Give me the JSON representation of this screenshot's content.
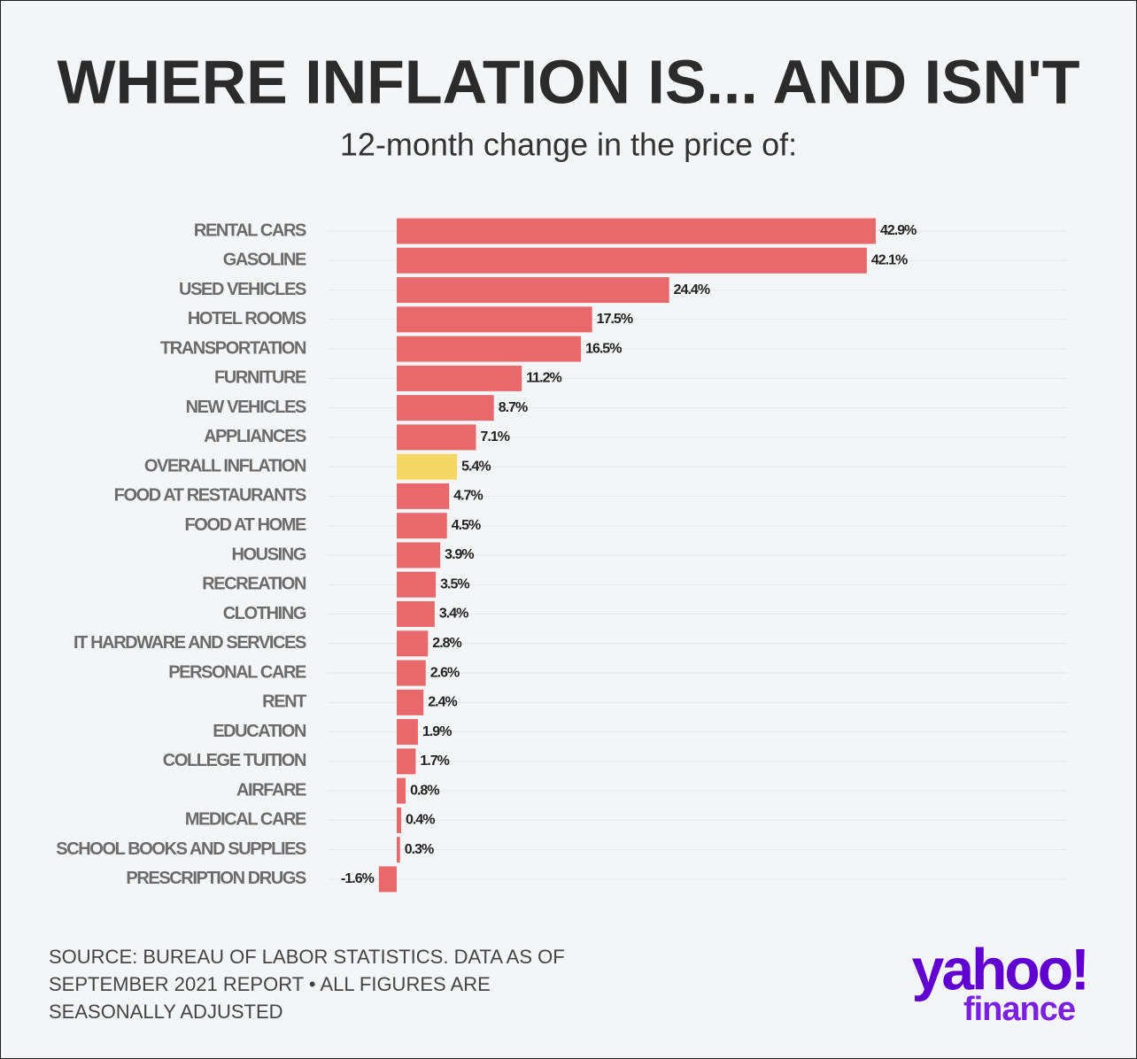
{
  "chart_data": {
    "type": "bar",
    "orientation": "horizontal",
    "title": "WHERE INFLATION IS... AND ISN'T",
    "subtitle": "12-month change in the price of:",
    "categories": [
      "RENTAL CARS",
      "GASOLINE",
      "USED VEHICLES",
      "HOTEL ROOMS",
      "TRANSPORTATION",
      "FURNITURE",
      "NEW VEHICLES",
      "APPLIANCES",
      "OVERALL INFLATION",
      "FOOD AT RESTAURANTS",
      "FOOD AT HOME",
      "HOUSING",
      "RECREATION",
      "CLOTHING",
      "IT HARDWARE AND SERVICES",
      "PERSONAL CARE",
      "RENT",
      "EDUCATION",
      "COLLEGE TUITION",
      "AIRFARE",
      "MEDICAL CARE",
      "SCHOOL BOOKS AND SUPPLIES",
      "PRESCRIPTION DRUGS"
    ],
    "values": [
      42.9,
      42.1,
      24.4,
      17.5,
      16.5,
      11.2,
      8.7,
      7.1,
      5.4,
      4.7,
      4.5,
      3.9,
      3.5,
      3.4,
      2.8,
      2.6,
      2.4,
      1.9,
      1.7,
      0.8,
      0.4,
      0.3,
      -1.6
    ],
    "value_labels": [
      "42.9%",
      "42.1%",
      "24.4%",
      "17.5%",
      "16.5%",
      "11.2%",
      "8.7%",
      "7.1%",
      "5.4%",
      "4.7%",
      "4.5%",
      "3.9%",
      "3.5%",
      "3.4%",
      "2.8%",
      "2.6%",
      "2.4%",
      "1.9%",
      "1.7%",
      "0.8%",
      "0.4%",
      "0.3%",
      "-1.6%"
    ],
    "colors": [
      "#e8696b",
      "#e8696b",
      "#e8696b",
      "#e8696b",
      "#e8696b",
      "#e8696b",
      "#e8696b",
      "#e8696b",
      "#f6d665",
      "#e8696b",
      "#e8696b",
      "#e8696b",
      "#e8696b",
      "#e8696b",
      "#e8696b",
      "#e8696b",
      "#e8696b",
      "#e8696b",
      "#e8696b",
      "#e8696b",
      "#e8696b",
      "#e8696b",
      "#e8696b"
    ],
    "source": [
      "SOURCE: BUREAU OF LABOR STATISTICS. DATA AS OF",
      "SEPTEMBER 2021 REPORT • ALL FIGURES ARE",
      "SEASONALLY ADJUSTED"
    ],
    "logo": {
      "text": "yahoo!",
      "subtext": "finance"
    }
  }
}
